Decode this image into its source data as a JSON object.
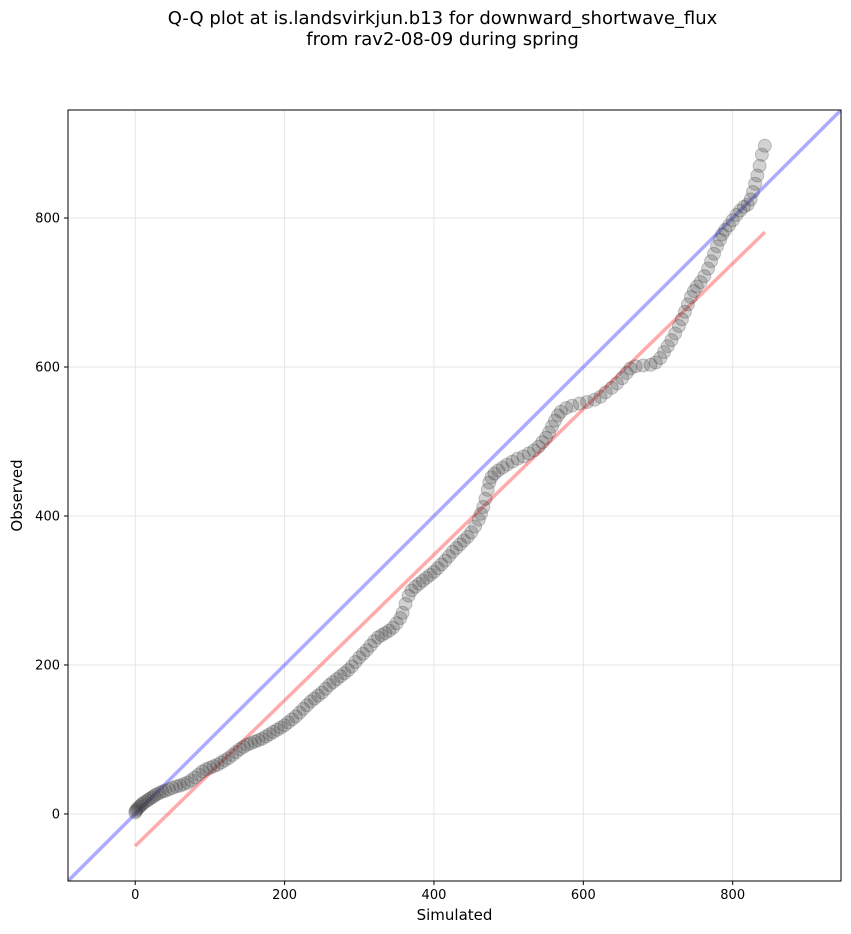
{
  "chart_data": {
    "type": "scatter",
    "title": "Q-Q plot at is.landsvirkjun.b13 for downward_shortwave_flux",
    "subtitle": "from rav2-08-09 during spring",
    "xlabel": "Simulated",
    "ylabel": "Observed",
    "xlim": [
      -90,
      945
    ],
    "ylim": [
      -90,
      945
    ],
    "xticks": [
      0,
      200,
      400,
      600,
      800
    ],
    "yticks": [
      0,
      200,
      400,
      600,
      800
    ],
    "grid": true,
    "reference_lines": [
      {
        "kind": "1:1 line",
        "color": "#0000ff",
        "from": [
          -90,
          -90
        ],
        "to": [
          945,
          945
        ]
      },
      {
        "kind": "fit line",
        "color": "#ff0000",
        "from": [
          0,
          -43
        ],
        "to": [
          843,
          781
        ]
      }
    ],
    "colors": {
      "points": "#333333",
      "one_to_one": "#0000ff",
      "fit": "#ff0000",
      "grid": "#e6e6e6"
    },
    "points": [
      [
        0,
        2
      ],
      [
        1,
        4
      ],
      [
        2,
        6
      ],
      [
        4,
        8
      ],
      [
        6,
        10
      ],
      [
        8,
        12
      ],
      [
        10,
        14
      ],
      [
        13,
        16
      ],
      [
        16,
        18
      ],
      [
        19,
        20
      ],
      [
        22,
        22
      ],
      [
        25,
        24
      ],
      [
        28,
        26
      ],
      [
        32,
        28
      ],
      [
        36,
        30
      ],
      [
        40,
        31
      ],
      [
        45,
        33
      ],
      [
        50,
        35
      ],
      [
        55,
        37
      ],
      [
        60,
        38
      ],
      [
        65,
        40
      ],
      [
        70,
        42
      ],
      [
        75,
        45
      ],
      [
        80,
        49
      ],
      [
        85,
        53
      ],
      [
        90,
        57
      ],
      [
        95,
        60
      ],
      [
        100,
        62
      ],
      [
        105,
        64
      ],
      [
        110,
        66
      ],
      [
        115,
        69
      ],
      [
        120,
        72
      ],
      [
        125,
        75
      ],
      [
        130,
        79
      ],
      [
        135,
        83
      ],
      [
        140,
        87
      ],
      [
        145,
        90
      ],
      [
        150,
        93
      ],
      [
        155,
        95
      ],
      [
        160,
        97
      ],
      [
        165,
        99
      ],
      [
        170,
        101
      ],
      [
        175,
        104
      ],
      [
        180,
        107
      ],
      [
        185,
        110
      ],
      [
        190,
        113
      ],
      [
        195,
        116
      ],
      [
        200,
        119
      ],
      [
        205,
        123
      ],
      [
        210,
        127
      ],
      [
        215,
        131
      ],
      [
        220,
        136
      ],
      [
        225,
        141
      ],
      [
        230,
        146
      ],
      [
        235,
        151
      ],
      [
        240,
        155
      ],
      [
        245,
        159
      ],
      [
        250,
        163
      ],
      [
        255,
        168
      ],
      [
        260,
        173
      ],
      [
        265,
        177
      ],
      [
        270,
        181
      ],
      [
        275,
        185
      ],
      [
        280,
        189
      ],
      [
        285,
        193
      ],
      [
        290,
        198
      ],
      [
        295,
        204
      ],
      [
        300,
        210
      ],
      [
        305,
        215
      ],
      [
        310,
        220
      ],
      [
        315,
        226
      ],
      [
        320,
        232
      ],
      [
        325,
        237
      ],
      [
        330,
        240
      ],
      [
        335,
        243
      ],
      [
        340,
        246
      ],
      [
        345,
        250
      ],
      [
        350,
        256
      ],
      [
        355,
        263
      ],
      [
        358,
        270
      ],
      [
        362,
        282
      ],
      [
        366,
        293
      ],
      [
        370,
        300
      ],
      [
        375,
        305
      ],
      [
        380,
        309
      ],
      [
        385,
        313
      ],
      [
        390,
        317
      ],
      [
        395,
        321
      ],
      [
        400,
        325
      ],
      [
        405,
        330
      ],
      [
        410,
        335
      ],
      [
        415,
        340
      ],
      [
        420,
        346
      ],
      [
        425,
        352
      ],
      [
        430,
        357
      ],
      [
        435,
        362
      ],
      [
        440,
        367
      ],
      [
        445,
        372
      ],
      [
        450,
        378
      ],
      [
        455,
        386
      ],
      [
        460,
        395
      ],
      [
        463,
        403
      ],
      [
        466,
        412
      ],
      [
        469,
        423
      ],
      [
        472,
        435
      ],
      [
        474,
        445
      ],
      [
        477,
        452
      ],
      [
        481,
        457
      ],
      [
        486,
        461
      ],
      [
        492,
        465
      ],
      [
        498,
        469
      ],
      [
        505,
        473
      ],
      [
        512,
        477
      ],
      [
        520,
        480
      ],
      [
        527,
        484
      ],
      [
        534,
        488
      ],
      [
        540,
        493
      ],
      [
        545,
        499
      ],
      [
        550,
        505
      ],
      [
        554,
        512
      ],
      [
        558,
        520
      ],
      [
        562,
        528
      ],
      [
        566,
        535
      ],
      [
        570,
        540
      ],
      [
        577,
        545
      ],
      [
        585,
        548
      ],
      [
        595,
        551
      ],
      [
        605,
        553
      ],
      [
        615,
        556
      ],
      [
        623,
        560
      ],
      [
        630,
        566
      ],
      [
        638,
        572
      ],
      [
        645,
        578
      ],
      [
        652,
        585
      ],
      [
        658,
        592
      ],
      [
        663,
        598
      ],
      [
        670,
        601
      ],
      [
        680,
        602
      ],
      [
        690,
        603
      ],
      [
        697,
        606
      ],
      [
        703,
        612
      ],
      [
        708,
        620
      ],
      [
        713,
        628
      ],
      [
        718,
        636
      ],
      [
        723,
        645
      ],
      [
        728,
        655
      ],
      [
        732,
        664
      ],
      [
        736,
        674
      ],
      [
        740,
        684
      ],
      [
        744,
        694
      ],
      [
        748,
        702
      ],
      [
        752,
        708
      ],
      [
        757,
        714
      ],
      [
        762,
        722
      ],
      [
        767,
        732
      ],
      [
        771,
        742
      ],
      [
        775,
        752
      ],
      [
        779,
        762
      ],
      [
        783,
        771
      ],
      [
        786,
        778
      ],
      [
        790,
        784
      ],
      [
        795,
        790
      ],
      [
        800,
        797
      ],
      [
        805,
        804
      ],
      [
        810,
        810
      ],
      [
        815,
        815
      ],
      [
        820,
        818
      ],
      [
        824,
        825
      ],
      [
        827,
        835
      ],
      [
        830,
        846
      ],
      [
        833,
        857
      ],
      [
        836,
        870
      ],
      [
        839,
        885
      ],
      [
        843,
        897
      ]
    ]
  }
}
